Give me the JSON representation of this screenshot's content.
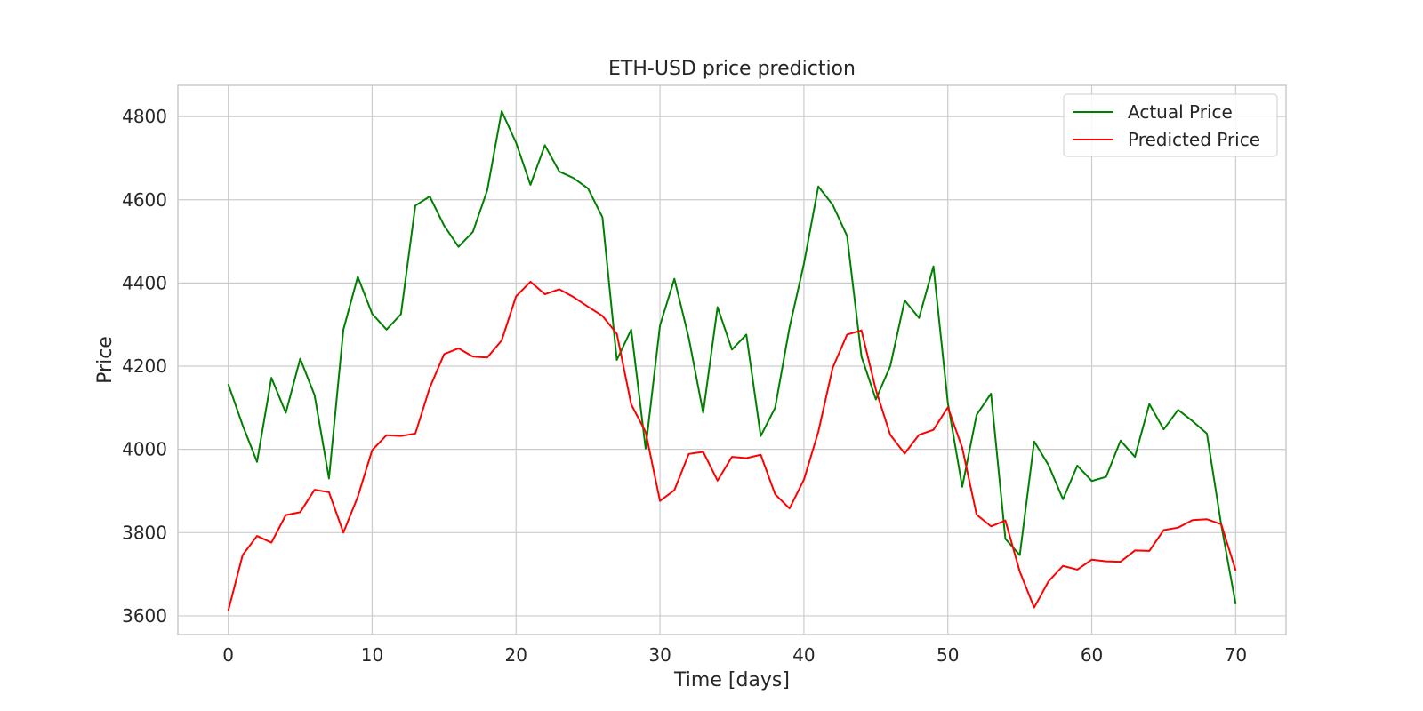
{
  "chart_data": {
    "type": "line",
    "title": "ETH-USD price prediction",
    "xlabel": "Time [days]",
    "ylabel": "Price",
    "xlim": [
      -3.5,
      73.5
    ],
    "ylim": [
      3555,
      4875
    ],
    "x_ticks": [
      0,
      10,
      20,
      30,
      40,
      50,
      60,
      70
    ],
    "y_ticks": [
      3600,
      3800,
      4000,
      4200,
      4400,
      4600,
      4800
    ],
    "grid": true,
    "legend_position": "top-right",
    "x": [
      0,
      1,
      2,
      3,
      4,
      5,
      6,
      7,
      8,
      9,
      10,
      11,
      12,
      13,
      14,
      15,
      16,
      17,
      18,
      19,
      20,
      21,
      22,
      23,
      24,
      25,
      26,
      27,
      28,
      29,
      30,
      31,
      32,
      33,
      34,
      35,
      36,
      37,
      38,
      39,
      40,
      41,
      42,
      43,
      44,
      45,
      46,
      47,
      48,
      49,
      50,
      51,
      52,
      53,
      54,
      55,
      56,
      57,
      58,
      59,
      60,
      61,
      62,
      63,
      64,
      65,
      66,
      67,
      68,
      69,
      70
    ],
    "series": [
      {
        "name": "Actual Price",
        "color": "#008000",
        "values": [
          4157,
          4058,
          3970,
          4172,
          4088,
          4218,
          4130,
          3930,
          4288,
          4415,
          4326,
          4288,
          4325,
          4586,
          4608,
          4538,
          4487,
          4523,
          4623,
          4813,
          4737,
          4636,
          4731,
          4668,
          4652,
          4627,
          4558,
          4215,
          4288,
          4002,
          4298,
          4410,
          4268,
          4088,
          4342,
          4240,
          4276,
          4032,
          4100,
          4293,
          4446,
          4632,
          4588,
          4513,
          4223,
          4120,
          4200,
          4358,
          4316,
          4440,
          4112,
          3910,
          4083,
          4134,
          3785,
          3746,
          4019,
          3962,
          3880,
          3961,
          3924,
          3934,
          4021,
          3982,
          4109,
          4048,
          4095,
          4068,
          4038,
          3818,
          3628
        ]
      },
      {
        "name": "Predicted Price",
        "color": "#ff0000",
        "values": [
          3612,
          3746,
          3792,
          3776,
          3842,
          3849,
          3903,
          3897,
          3800,
          3886,
          3998,
          4034,
          4032,
          4038,
          4148,
          4229,
          4243,
          4223,
          4221,
          4262,
          4368,
          4403,
          4373,
          4385,
          4366,
          4343,
          4321,
          4278,
          4108,
          4042,
          3876,
          3902,
          3989,
          3994,
          3925,
          3982,
          3979,
          3987,
          3892,
          3858,
          3927,
          4042,
          4196,
          4276,
          4286,
          4143,
          4035,
          3990,
          4035,
          4047,
          4101,
          4004,
          3843,
          3815,
          3829,
          3706,
          3620,
          3683,
          3720,
          3711,
          3735,
          3731,
          3730,
          3757,
          3756,
          3806,
          3812,
          3830,
          3832,
          3820,
          3709
        ]
      }
    ]
  }
}
